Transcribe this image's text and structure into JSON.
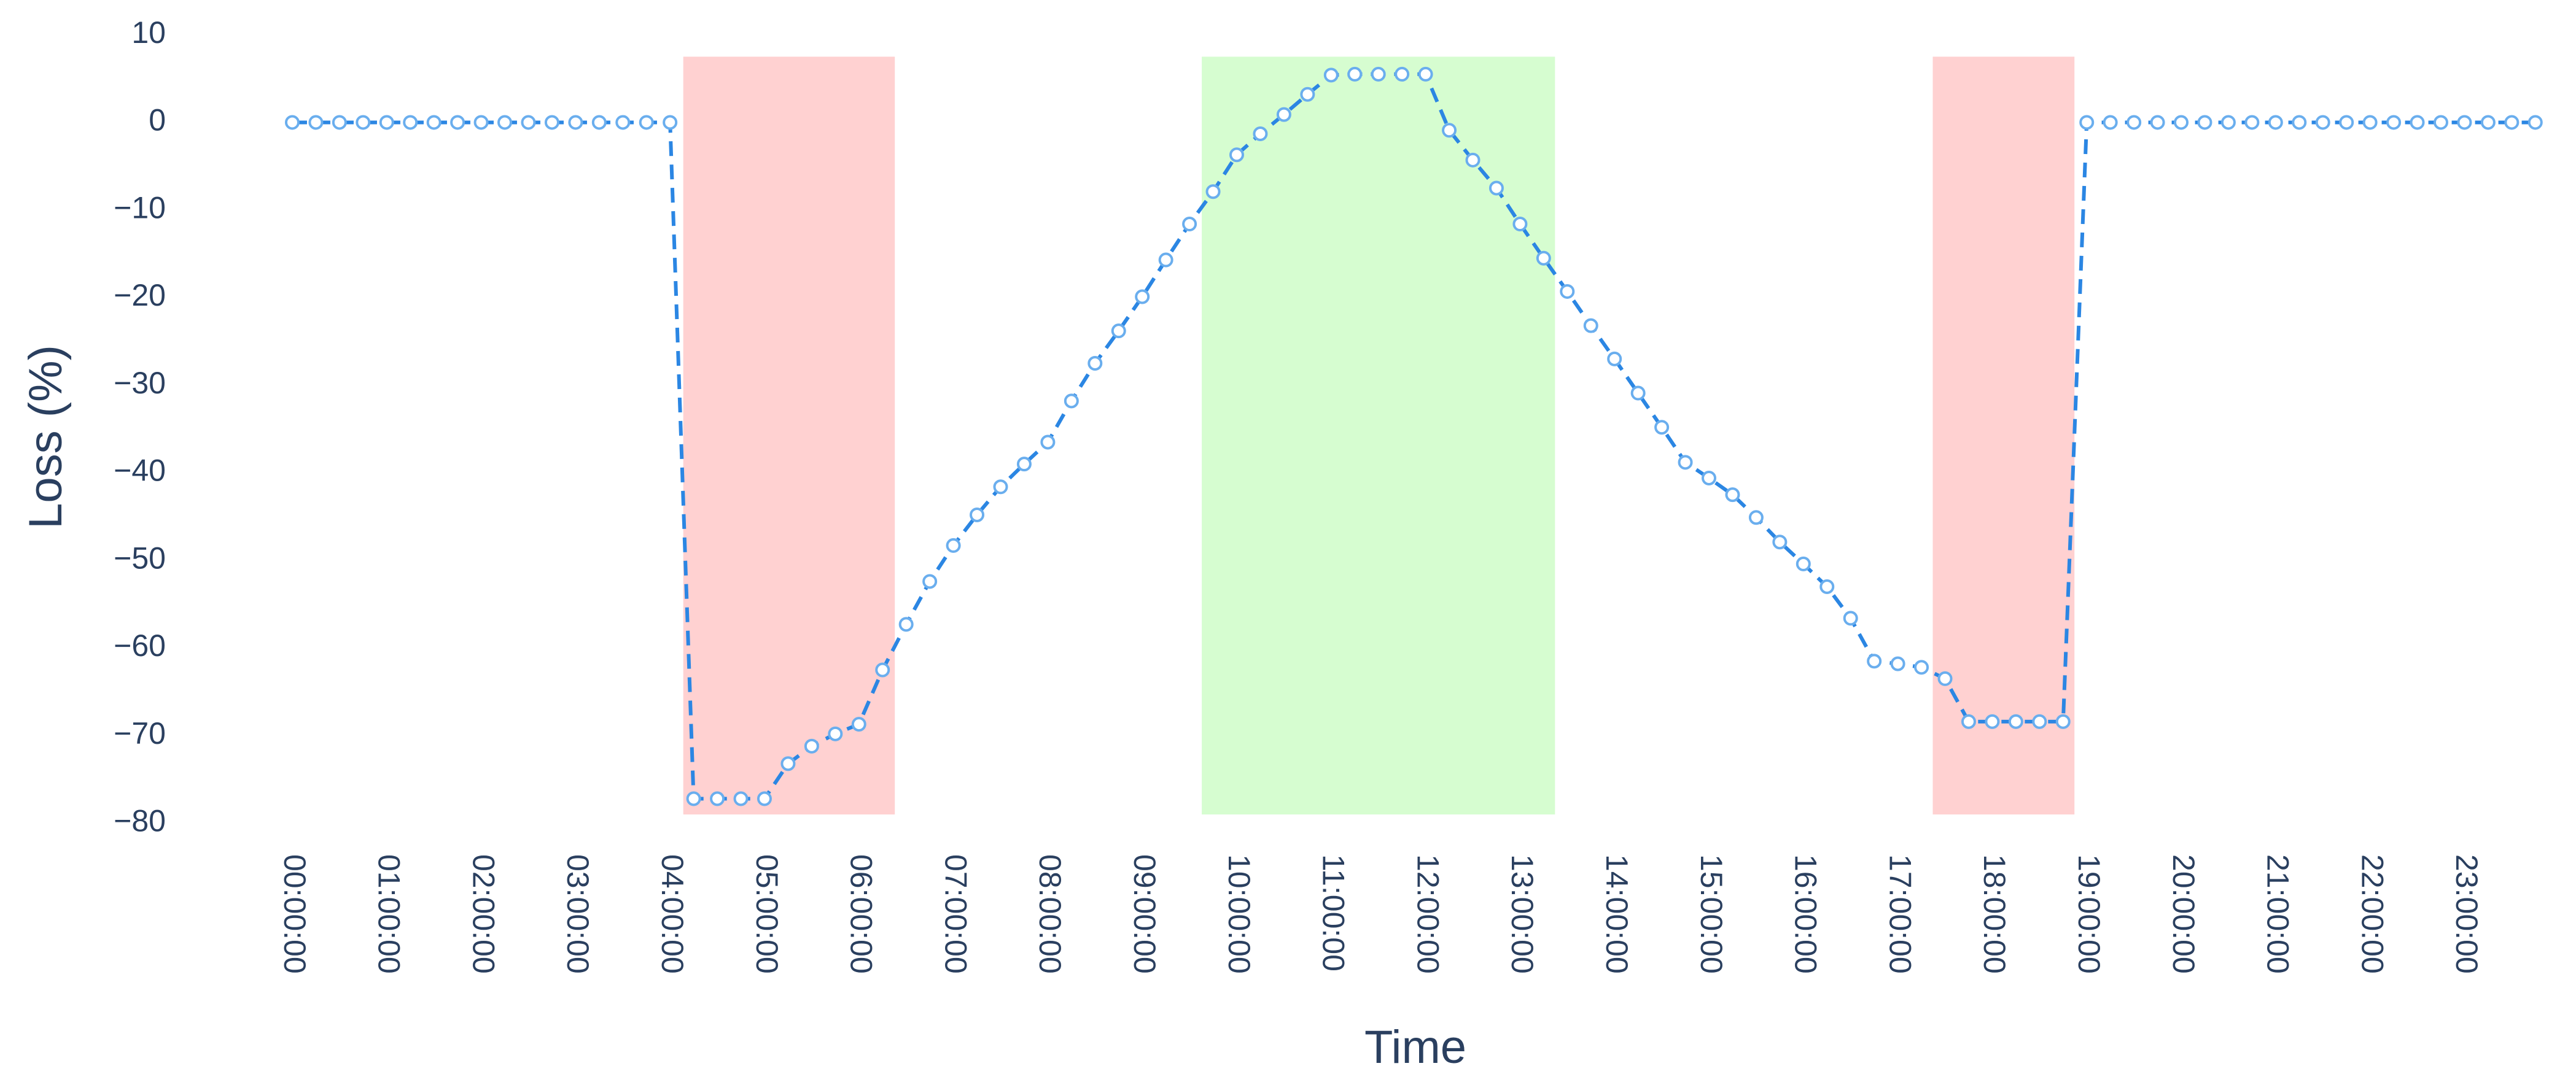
{
  "chart_data": {
    "type": "line",
    "x_label": "Time",
    "y_label": "Loss (%)",
    "x": [
      0,
      0.25,
      0.5,
      0.75,
      1,
      1.25,
      1.5,
      1.75,
      2,
      2.25,
      2.5,
      2.75,
      3,
      3.25,
      3.5,
      3.75,
      4,
      4.25,
      4.5,
      4.75,
      5,
      5.25,
      5.5,
      5.75,
      6,
      6.25,
      6.5,
      6.75,
      7,
      7.25,
      7.5,
      7.75,
      8,
      8.25,
      8.5,
      8.75,
      9,
      9.25,
      9.5,
      9.75,
      10,
      10.25,
      10.5,
      10.75,
      11,
      11.25,
      11.5,
      11.75,
      12,
      12.25,
      12.5,
      12.75,
      13,
      13.25,
      13.5,
      13.75,
      14,
      14.25,
      14.5,
      14.75,
      15,
      15.25,
      15.5,
      15.75,
      16,
      16.25,
      16.5,
      16.75,
      17,
      17.25,
      17.5,
      17.75,
      18,
      18.25,
      18.5,
      18.75,
      19,
      19.25,
      19.5,
      19.75,
      20,
      20.25,
      20.5,
      20.75,
      21,
      21.25,
      21.5,
      21.75,
      22,
      22.25,
      22.5,
      22.75,
      23,
      23.25,
      23.5,
      23.75
    ],
    "values": [
      0,
      0,
      0,
      0,
      0,
      0,
      0,
      0,
      0,
      0,
      0,
      0,
      0,
      0,
      0,
      0,
      0,
      -77.2,
      -77.2,
      -77.2,
      -77.2,
      -73.2,
      -71.2,
      -69.8,
      -68.7,
      -62.5,
      -57.3,
      -52.4,
      -48.3,
      -44.8,
      -41.6,
      -39,
      -36.5,
      -31.8,
      -27.5,
      -23.8,
      -19.9,
      -15.7,
      -11.6,
      -7.9,
      -3.7,
      -1.3,
      0.9,
      3.2,
      5.4,
      5.5,
      5.5,
      5.5,
      5.5,
      -0.9,
      -4.3,
      -7.5,
      -11.6,
      -15.5,
      -19.3,
      -23.2,
      -27,
      -30.9,
      -34.8,
      -38.8,
      -40.6,
      -42.5,
      -45.1,
      -47.9,
      -50.4,
      -53,
      -56.6,
      -61.5,
      -61.8,
      -62.2,
      -63.5,
      -68.4,
      -68.4,
      -68.4,
      -68.4,
      -68.4,
      0,
      0,
      0,
      0,
      0,
      0,
      0,
      0,
      0,
      0,
      0,
      0,
      0,
      0,
      0,
      0,
      0,
      0,
      0,
      0
    ],
    "color": "#2b86e3",
    "marker_color": "#6aaeee",
    "line_dash": "dash",
    "shapes": [
      {
        "x0": 4.14,
        "x1": 6.38,
        "y0": -79,
        "y1": 7.5,
        "color": "#ffd1d1"
      },
      {
        "x0": 9.63,
        "x1": 13.37,
        "y0": -79,
        "y1": 7.5,
        "color": "#d6fdd0"
      },
      {
        "x0": 17.37,
        "x1": 18.87,
        "y0": -79,
        "y1": 7.5,
        "color": "#ffd1d1"
      }
    ],
    "xlim": [
      -1.04,
      24.07
    ],
    "ylim": [
      -82,
      12.5
    ],
    "xticks": [
      {
        "value": 0,
        "label": "00:00:00"
      },
      {
        "value": 1,
        "label": "01:00:00"
      },
      {
        "value": 2,
        "label": "02:00:00"
      },
      {
        "value": 3,
        "label": "03:00:00"
      },
      {
        "value": 4,
        "label": "04:00:00"
      },
      {
        "value": 5,
        "label": "05:00:00"
      },
      {
        "value": 6,
        "label": "06:00:00"
      },
      {
        "value": 7,
        "label": "07:00:00"
      },
      {
        "value": 8,
        "label": "08:00:00"
      },
      {
        "value": 9,
        "label": "09:00:00"
      },
      {
        "value": 10,
        "label": "10:00:00"
      },
      {
        "value": 11,
        "label": "11:00:00"
      },
      {
        "value": 12,
        "label": "12:00:00"
      },
      {
        "value": 13,
        "label": "13:00:00"
      },
      {
        "value": 14,
        "label": "14:00:00"
      },
      {
        "value": 15,
        "label": "15:00:00"
      },
      {
        "value": 16,
        "label": "16:00:00"
      },
      {
        "value": 17,
        "label": "17:00:00"
      },
      {
        "value": 18,
        "label": "18:00:00"
      },
      {
        "value": 19,
        "label": "19:00:00"
      },
      {
        "value": 20,
        "label": "20:00:00"
      },
      {
        "value": 21,
        "label": "21:00:00"
      },
      {
        "value": 22,
        "label": "22:00:00"
      },
      {
        "value": 23,
        "label": "23:00:00"
      }
    ],
    "yticks": [
      10,
      0,
      {
        "value": -10,
        "label": "−10"
      },
      {
        "value": -20,
        "label": "−20"
      },
      {
        "value": -30,
        "label": "−30"
      },
      {
        "value": -40,
        "label": "−40"
      },
      {
        "value": -50,
        "label": "−50"
      },
      {
        "value": -60,
        "label": "−60"
      },
      {
        "value": -70,
        "label": "−70"
      },
      {
        "value": -80,
        "label": "−80"
      }
    ],
    "grid": true
  }
}
